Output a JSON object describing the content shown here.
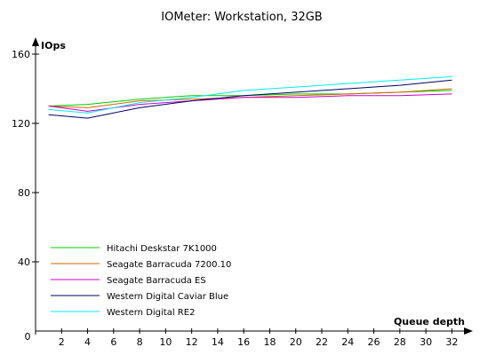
{
  "chart_data": {
    "type": "line",
    "title": "IOMeter: Workstation, 32GB",
    "xlabel": "Queue depth",
    "ylabel": "IOps",
    "x": [
      1,
      4,
      8,
      12,
      16,
      20,
      24,
      28,
      32
    ],
    "xticks": [
      2,
      4,
      6,
      8,
      10,
      12,
      14,
      16,
      18,
      20,
      22,
      24,
      26,
      28,
      30,
      32
    ],
    "yticks": [
      40,
      80,
      120,
      160
    ],
    "origin_label": "0",
    "xlim": [
      0,
      33
    ],
    "ylim": [
      0,
      160
    ],
    "grid": false,
    "legend_position": "bottom-left",
    "series": [
      {
        "name": "Hitachi Deskstar 7K1000",
        "color": "#00cc00",
        "values": [
          130,
          131,
          134,
          136,
          136,
          137,
          137,
          138,
          139
        ]
      },
      {
        "name": "Seagate Barracuda 7200.10",
        "color": "#cc6600",
        "values": [
          130,
          129,
          133,
          134,
          135,
          136,
          137,
          138,
          140
        ]
      },
      {
        "name": "Seagate Barracuda ES",
        "color": "#cc00cc",
        "values": [
          130,
          127,
          131,
          133,
          135,
          135,
          136,
          136,
          137
        ]
      },
      {
        "name": "Western Digital Caviar Blue",
        "color": "#000066",
        "values": [
          125,
          123,
          129,
          133,
          136,
          138,
          140,
          142,
          145
        ]
      },
      {
        "name": "Western Digital RE2",
        "color": "#00eeee",
        "values": [
          128,
          126,
          132,
          135,
          139,
          141,
          143,
          145,
          147
        ]
      }
    ]
  }
}
